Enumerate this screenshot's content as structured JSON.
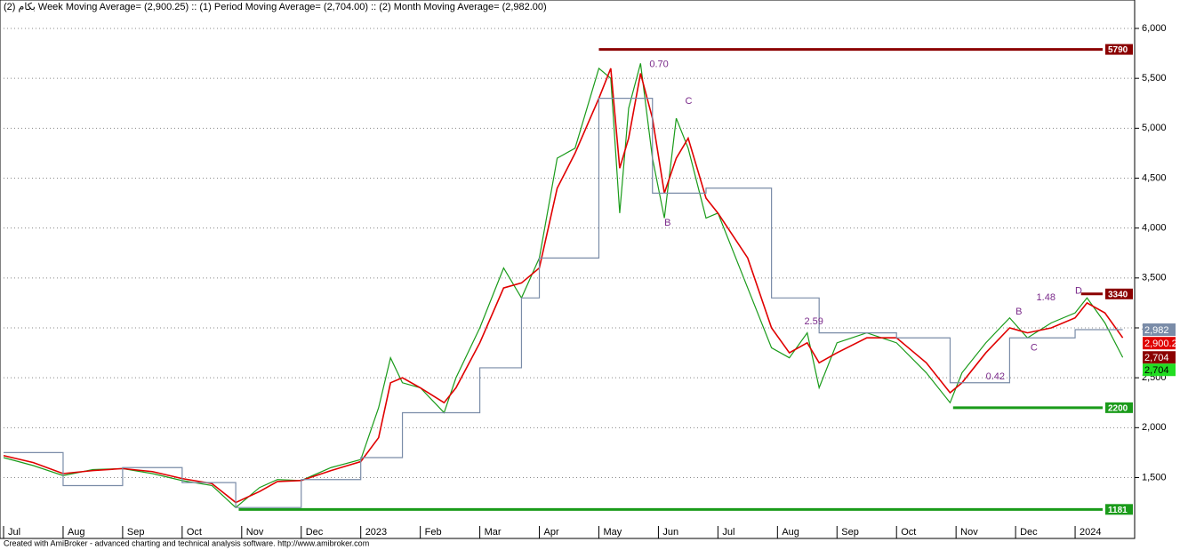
{
  "chart_data": {
    "type": "line",
    "title": "بکام (2) Week Moving Average= (2,900.25) :: (1) Period Moving Average= (2,704.00) :: (2) Month Moving Average= (2,982.00)",
    "footer": "Created with AmiBroker - advanced charting and technical analysis software. http://www.amibroker.com",
    "xlim": [
      -0.06,
      19.0
    ],
    "ylim": [
      890,
      6285
    ],
    "xticks": [
      {
        "value": 0,
        "label": "Jul"
      },
      {
        "value": 1,
        "label": "Aug"
      },
      {
        "value": 2,
        "label": "Sep"
      },
      {
        "value": 3,
        "label": "Oct"
      },
      {
        "value": 4,
        "label": "Nov"
      },
      {
        "value": 5,
        "label": "Dec"
      },
      {
        "value": 6,
        "label": "2023"
      },
      {
        "value": 7,
        "label": "Feb"
      },
      {
        "value": 8,
        "label": "Mar"
      },
      {
        "value": 9,
        "label": "Apr"
      },
      {
        "value": 10,
        "label": "May"
      },
      {
        "value": 11,
        "label": "Jun"
      },
      {
        "value": 12,
        "label": "Jul"
      },
      {
        "value": 13,
        "label": "Aug"
      },
      {
        "value": 14,
        "label": "Sep"
      },
      {
        "value": 15,
        "label": "Oct"
      },
      {
        "value": 16,
        "label": "Nov"
      },
      {
        "value": 17,
        "label": "Dec"
      },
      {
        "value": 18,
        "label": "2024"
      }
    ],
    "yticks": [
      {
        "value": 1500,
        "label": "1,500"
      },
      {
        "value": 2000,
        "label": "2,000"
      },
      {
        "value": 2500,
        "label": "2,500"
      },
      {
        "value": 3000,
        "label": "3,000"
      },
      {
        "value": 3500,
        "label": "3,500"
      },
      {
        "value": 4000,
        "label": "4,000"
      },
      {
        "value": 4500,
        "label": "4,500"
      },
      {
        "value": 5000,
        "label": "5,000"
      },
      {
        "value": 5500,
        "label": "5,500"
      },
      {
        "value": 6000,
        "label": "6,000"
      }
    ],
    "grid": true,
    "x": [
      0,
      0.5,
      1,
      1.5,
      2,
      2.5,
      3,
      3.5,
      3.9,
      4.3,
      4.6,
      5,
      5.5,
      6,
      6.3,
      6.5,
      6.7,
      7,
      7.4,
      7.6,
      8,
      8.4,
      8.7,
      9,
      9.3,
      9.6,
      10,
      10.2,
      10.35,
      10.5,
      10.7,
      10.9,
      11.1,
      11.3,
      11.5,
      11.8,
      12,
      12.5,
      12.9,
      13.2,
      13.5,
      13.7,
      14,
      14.5,
      15,
      15.5,
      15.9,
      16.1,
      16.5,
      16.9,
      17.2,
      17.6,
      18,
      18.2,
      18.5,
      18.8
    ],
    "series": [
      {
        "name": "Period Moving Average",
        "color": "#1a9b1a",
        "values": [
          1700,
          1620,
          1520,
          1580,
          1590,
          1540,
          1470,
          1420,
          1200,
          1400,
          1480,
          1470,
          1600,
          1680,
          2200,
          2700,
          2450,
          2400,
          2150,
          2500,
          3000,
          3600,
          3300,
          3700,
          4700,
          4800,
          5600,
          5500,
          4150,
          5200,
          5650,
          4700,
          4100,
          5100,
          4800,
          4100,
          4150,
          3400,
          2800,
          2700,
          2950,
          2400,
          2850,
          2950,
          2850,
          2550,
          2250,
          2550,
          2850,
          3100,
          2900,
          3050,
          3150,
          3300,
          3050,
          2704
        ]
      },
      {
        "name": "Week Moving Average",
        "color": "#e00000",
        "values": [
          1720,
          1650,
          1540,
          1570,
          1590,
          1560,
          1490,
          1440,
          1250,
          1360,
          1460,
          1470,
          1570,
          1660,
          1900,
          2450,
          2500,
          2400,
          2250,
          2400,
          2850,
          3400,
          3450,
          3600,
          4400,
          4750,
          5300,
          5600,
          4600,
          4900,
          5550,
          5100,
          4350,
          4700,
          4900,
          4300,
          4150,
          3700,
          3000,
          2750,
          2850,
          2650,
          2750,
          2900,
          2900,
          2650,
          2350,
          2450,
          2750,
          3000,
          2950,
          3000,
          3100,
          3250,
          3150,
          2900.25
        ]
      },
      {
        "name": "Month Moving Average",
        "color": "#7a8ca8",
        "step": true,
        "values": [
          1750,
          1750,
          1420,
          1420,
          1600,
          1600,
          1450,
          1450,
          1200,
          1200,
          1200,
          1480,
          1480,
          1700,
          1700,
          1700,
          2150,
          2150,
          2150,
          2150,
          2600,
          2600,
          3300,
          3700,
          3700,
          3700,
          5300,
          5300,
          5300,
          5300,
          5300,
          4350,
          4350,
          4350,
          4350,
          4400,
          4400,
          4400,
          3300,
          3300,
          3300,
          2950,
          2950,
          2950,
          2900,
          2900,
          2450,
          2450,
          2450,
          2900,
          2900,
          2900,
          2982,
          2982,
          2982,
          2982
        ]
      }
    ],
    "levels": [
      {
        "value": 5790,
        "label": "5790",
        "start": 10.0,
        "color": "#8b0000"
      },
      {
        "value": 3340,
        "label": "3340",
        "start": 18.1,
        "color": "#8b0000"
      },
      {
        "value": 2200,
        "label": "2200",
        "start": 15.95,
        "color": "#1a9b1a"
      },
      {
        "value": 1181,
        "label": "1181",
        "start": 3.95,
        "color": "#1a9b1a"
      }
    ],
    "price_tags": [
      {
        "value": 2982,
        "label": "2,982",
        "color": "#7a8ca8"
      },
      {
        "value": 2900.25,
        "label": "2,900.25",
        "color": "#e00000"
      },
      {
        "value": 2704,
        "label": "2,704",
        "color": "#8b0000"
      },
      {
        "value": 2704,
        "label": "2,704",
        "color": "#22dd22"
      }
    ],
    "annotations": [
      {
        "text": "0.70",
        "x": 10.85,
        "y": 5640
      },
      {
        "text": "2.59",
        "x": 13.45,
        "y": 3060
      },
      {
        "text": "1.48",
        "x": 17.35,
        "y": 3300
      },
      {
        "text": "0.42",
        "x": 16.5,
        "y": 2510
      },
      {
        "text": "B",
        "x": 11.1,
        "y": 4050
      },
      {
        "text": "C",
        "x": 11.45,
        "y": 5270
      },
      {
        "text": "B",
        "x": 17.0,
        "y": 3160
      },
      {
        "text": "C",
        "x": 17.25,
        "y": 2800
      },
      {
        "text": "D",
        "x": 18.0,
        "y": 3370
      }
    ]
  }
}
